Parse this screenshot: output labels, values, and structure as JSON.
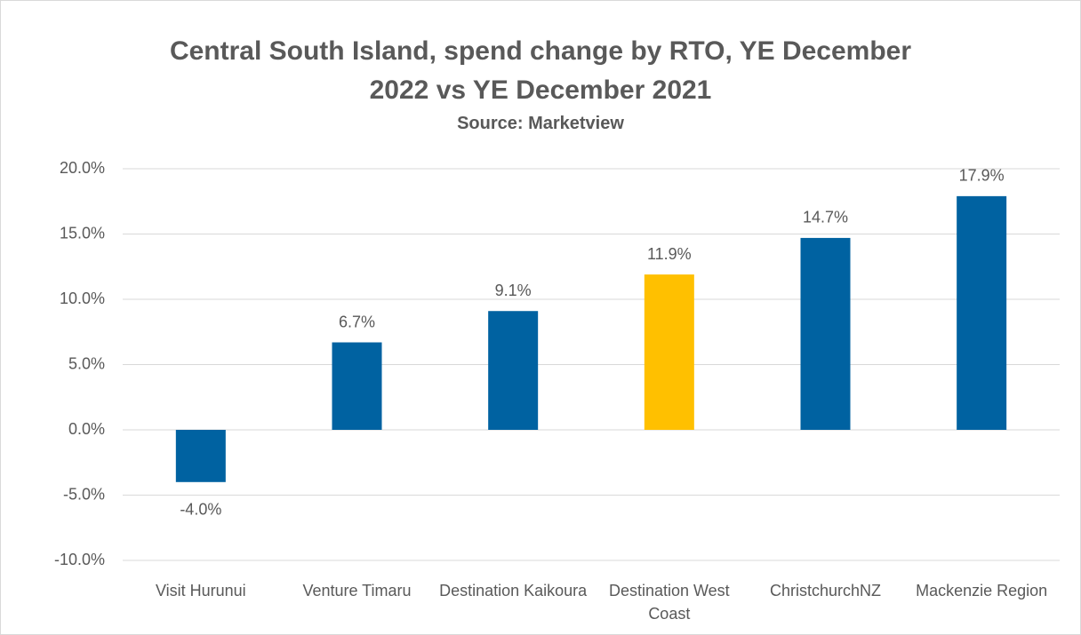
{
  "chart_data": {
    "type": "bar",
    "title": "Central South Island, spend change by RTO, YE December 2022 vs YE December 2021",
    "subtitle": "Source: Marketview",
    "categories": [
      "Visit Hurunui",
      "Venture Timaru",
      "Destination Kaikoura",
      "Destination West Coast",
      "ChristchurchNZ",
      "Mackenzie Region"
    ],
    "values": [
      -4.0,
      6.7,
      9.1,
      11.9,
      14.7,
      17.9
    ],
    "value_labels": [
      "-4.0%",
      "6.7%",
      "9.1%",
      "11.9%",
      "14.7%",
      "17.9%"
    ],
    "colors": [
      "#0062a1",
      "#0062a1",
      "#0062a1",
      "#ffc000",
      "#0062a1",
      "#0062a1"
    ],
    "ylim": [
      -10,
      20
    ],
    "yticks": [
      {
        "value": -10,
        "label": "-10.0%"
      },
      {
        "value": -5,
        "label": "-5.0%"
      },
      {
        "value": 0,
        "label": "0.0%"
      },
      {
        "value": 5,
        "label": "5.0%"
      },
      {
        "value": 10,
        "label": "10.0%"
      },
      {
        "value": 15,
        "label": "15.0%"
      },
      {
        "value": 20,
        "label": "20.0%"
      }
    ],
    "grid": true
  }
}
